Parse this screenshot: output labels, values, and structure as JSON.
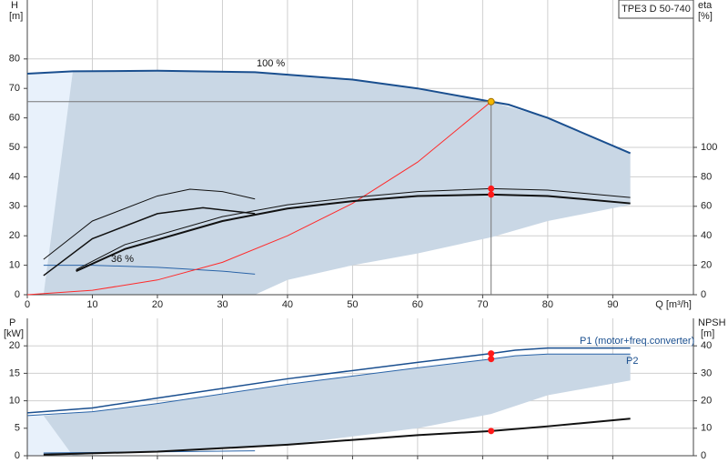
{
  "chart_data": [
    {
      "type": "line",
      "title": "TPE3 D 50-740",
      "ylabel": "H",
      "yunit": "[m]",
      "y2label": "eta",
      "y2unit": "[%]",
      "xlabel": "Q [m³/h]",
      "xlim": [
        0,
        102.4
      ],
      "xticks": [
        0,
        10,
        20,
        30,
        40,
        50,
        60,
        70,
        80,
        90
      ],
      "ylim": [
        0,
        100
      ],
      "yticks": [
        0,
        10,
        20,
        30,
        40,
        50,
        60,
        70,
        80
      ],
      "y2lim": [
        0,
        200
      ],
      "y2ticks": [
        0,
        20,
        40,
        60,
        80,
        100
      ],
      "grid": true,
      "areas": [
        {
          "color": "#c9d7e5",
          "x": [
            0,
            7,
            20,
            35,
            50,
            60,
            71.3,
            80,
            92.7,
            92.7,
            80,
            71.3,
            60,
            50,
            40,
            35,
            0
          ],
          "values": [
            75,
            75.8,
            76,
            75.5,
            73,
            70,
            65.5,
            60,
            48,
            30.5,
            25,
            19.5,
            14,
            10,
            5,
            0,
            0
          ]
        },
        {
          "color": "#e8f1fb",
          "x": [
            0,
            7,
            2.5,
            0
          ],
          "values": [
            75,
            75.8,
            0,
            0
          ]
        }
      ],
      "series": [
        {
          "name": "100 %",
          "color": "#1a4f8f",
          "width": 2,
          "x": [
            0,
            7,
            20,
            35,
            50,
            60,
            71.3,
            74,
            80,
            92.7
          ],
          "values": [
            75,
            75.8,
            76,
            75.5,
            73,
            70,
            65.5,
            64.5,
            60,
            48
          ]
        },
        {
          "name": "36 %",
          "color": "#2a64a8",
          "width": 1,
          "x": [
            2.5,
            10,
            20,
            30,
            35
          ],
          "values": [
            10,
            10,
            9.3,
            8,
            7
          ]
        },
        {
          "color": "#ff2a2a",
          "width": 1,
          "x": [
            0,
            10,
            20,
            30,
            40,
            50,
            60,
            71.3
          ],
          "values": [
            0,
            1.5,
            5,
            11,
            20,
            31,
            45,
            65.5
          ]
        },
        {
          "color": "#111111",
          "width": 1,
          "axis": "y2",
          "x": [
            7.5,
            15,
            30,
            40,
            50,
            60,
            71.3,
            80,
            92.7
          ],
          "values": [
            17,
            34,
            53,
            61,
            66,
            70,
            72,
            71,
            66
          ]
        },
        {
          "color": "#111111",
          "width": 2,
          "axis": "y2",
          "x": [
            7.5,
            15,
            30,
            40,
            50,
            60,
            71.3,
            80,
            92.7
          ],
          "values": [
            16,
            31,
            50,
            58.5,
            63.5,
            67,
            68,
            67,
            62
          ]
        },
        {
          "color": "#111111",
          "width": 1,
          "axis": "y2",
          "x": [
            2.5,
            10,
            20,
            25,
            30,
            35
          ],
          "values": [
            24,
            50,
            67,
            71.6,
            70,
            65
          ]
        },
        {
          "color": "#111111",
          "width": 1.5,
          "axis": "y2",
          "x": [
            2.5,
            10,
            20,
            27,
            35
          ],
          "values": [
            13,
            38,
            55,
            59,
            55
          ]
        }
      ],
      "points": [
        {
          "x": 71.3,
          "y": 65.5,
          "color": "#f5b800",
          "drop_lines": true
        },
        {
          "x": 71.3,
          "y": 72,
          "color": "#ff1a1a",
          "axis": "y2"
        },
        {
          "x": 71.3,
          "y": 68,
          "color": "#ff1a1a",
          "axis": "y2"
        }
      ]
    },
    {
      "type": "line",
      "ylabel": "P",
      "yunit": "[kW]",
      "y2label": "NPSH",
      "y2unit": "[m]",
      "xlim": [
        0,
        102.4
      ],
      "ylim": [
        0,
        25
      ],
      "yticks": [
        0,
        5,
        10,
        15,
        20
      ],
      "y2lim": [
        0,
        50
      ],
      "y2ticks": [
        0,
        10,
        20,
        30,
        40
      ],
      "grid": true,
      "areas": [
        {
          "color": "#c9d7e5",
          "x": [
            2.5,
            10,
            20,
            40,
            60,
            71.3,
            75,
            80,
            92.7,
            92.7,
            80,
            71.3,
            60,
            40,
            20,
            10,
            7,
            2.5
          ],
          "values": [
            7.3,
            8,
            9.5,
            13,
            16,
            17.6,
            18.2,
            18.5,
            18.5,
            13.7,
            11,
            7.6,
            5,
            2,
            0.8,
            0.4,
            0,
            0
          ]
        },
        {
          "color": "#e8f1fb",
          "x": [
            0,
            2.5,
            7,
            0
          ],
          "values": [
            7.5,
            7.3,
            0,
            0
          ]
        }
      ],
      "series": [
        {
          "name": "P1 (motor+freq.converter)",
          "color": "#1a4f8f",
          "width": 1.5,
          "x": [
            0,
            10,
            20,
            40,
            60,
            71.3,
            75,
            80,
            92.7
          ],
          "values": [
            7.8,
            8.7,
            10.5,
            14,
            17,
            18.6,
            19.2,
            19.6,
            19.6
          ]
        },
        {
          "name": "P2",
          "color": "#2a64a8",
          "width": 1,
          "x": [
            0,
            10,
            20,
            40,
            60,
            71.3,
            75,
            80,
            92.7
          ],
          "values": [
            7.3,
            8,
            9.5,
            13,
            16,
            17.6,
            18.2,
            18.5,
            18.5
          ]
        },
        {
          "color": "#2a64a8",
          "width": 1,
          "x": [
            2.5,
            20,
            35
          ],
          "values": [
            0.5,
            0.7,
            0.9
          ]
        },
        {
          "color": "#111111",
          "width": 2,
          "axis": "y2",
          "x": [
            2.5,
            20,
            40,
            60,
            71.3,
            80,
            92.7
          ],
          "values": [
            0.4,
            1.5,
            4,
            7.5,
            9,
            10.7,
            13.5
          ]
        }
      ],
      "points": [
        {
          "x": 71.3,
          "y": 18.6,
          "color": "#ff1a1a"
        },
        {
          "x": 71.3,
          "y": 17.6,
          "color": "#ff1a1a"
        },
        {
          "x": 71.3,
          "y": 9,
          "color": "#ff1a1a",
          "axis": "y2"
        }
      ]
    }
  ]
}
